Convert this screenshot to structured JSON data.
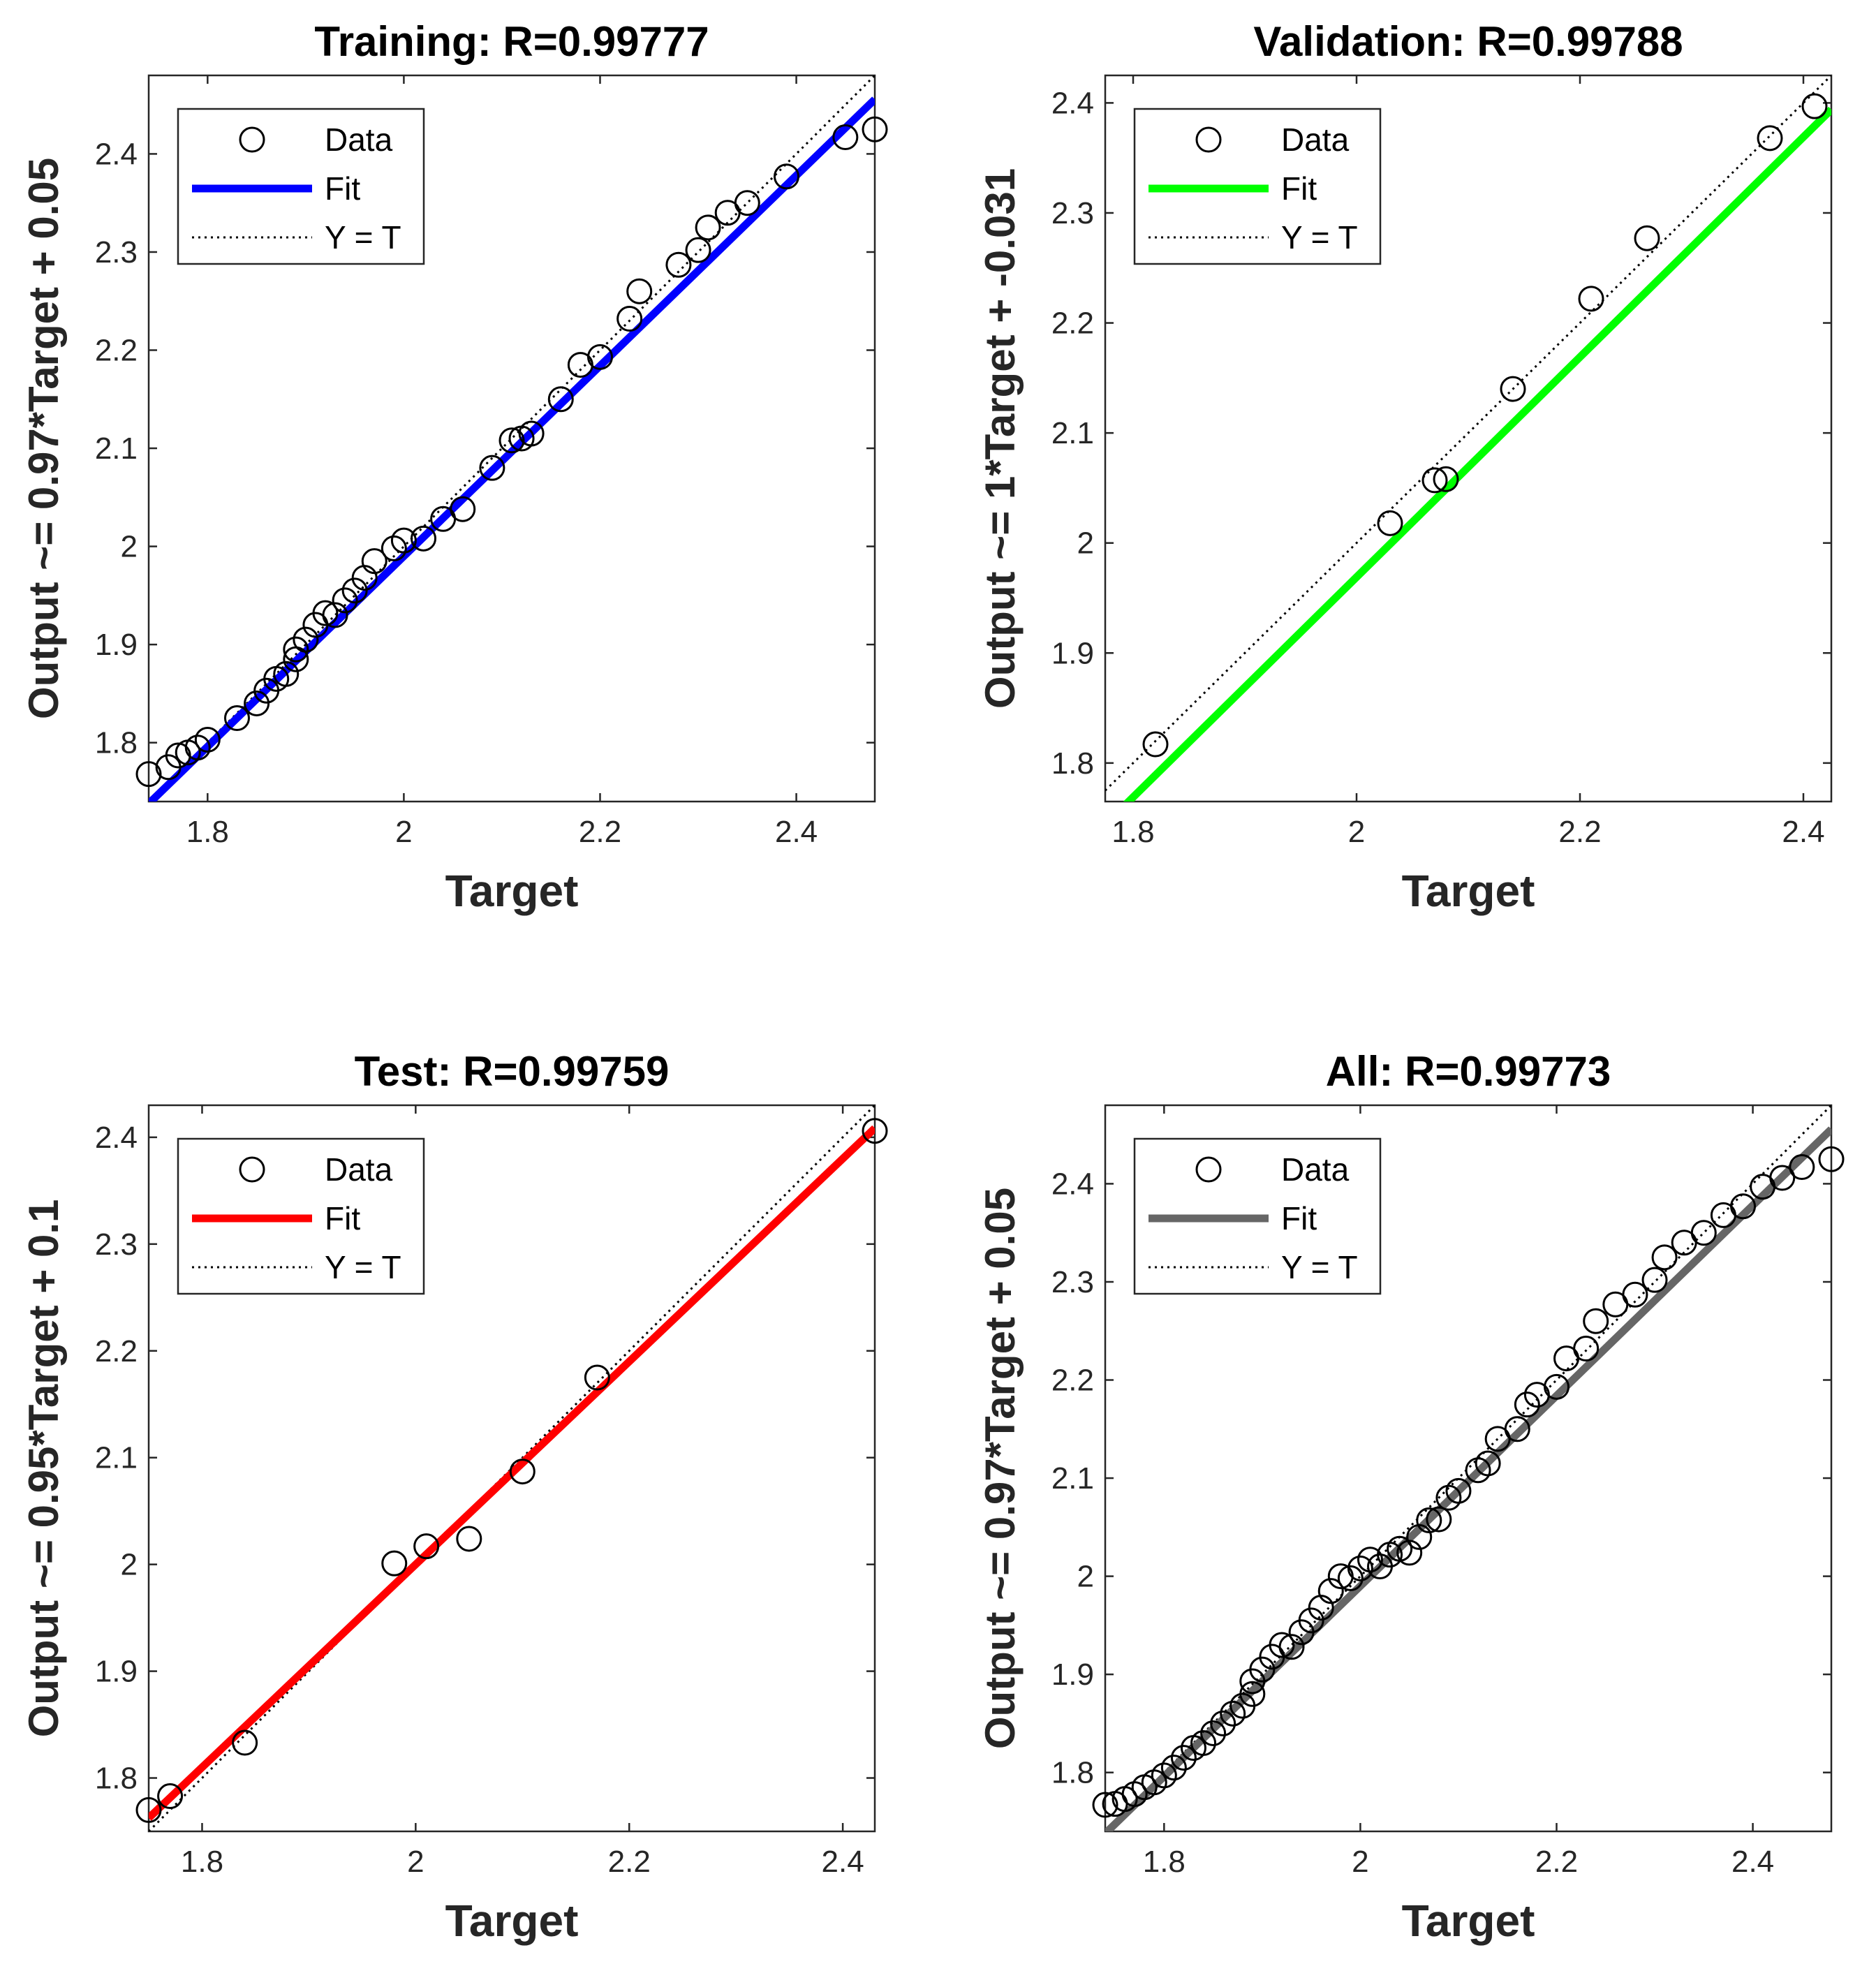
{
  "chart_data": [
    {
      "type": "scatter",
      "title": "Training: R=0.99777",
      "xlabel": "Target",
      "ylabel": "Output ~= 0.97*Target + 0.05",
      "xlim": [
        1.74,
        2.48
      ],
      "ylim": [
        1.74,
        2.48
      ],
      "xticks": [
        "1.8",
        "2",
        "2.2",
        "2.4"
      ],
      "yticks": [
        "1.8",
        "1.9",
        "2",
        "2.1",
        "2.2",
        "2.3",
        "2.4"
      ],
      "fit": {
        "slope": 0.97,
        "intercept": 0.05,
        "color": "#0000ff"
      },
      "legend": [
        "Data",
        "Fit",
        "Y = T"
      ],
      "points": [
        [
          1.74,
          1.768
        ],
        [
          1.76,
          1.775
        ],
        [
          1.77,
          1.787
        ],
        [
          1.78,
          1.79
        ],
        [
          1.79,
          1.795
        ],
        [
          1.8,
          1.803
        ],
        [
          1.83,
          1.825
        ],
        [
          1.85,
          1.84
        ],
        [
          1.86,
          1.853
        ],
        [
          1.87,
          1.865
        ],
        [
          1.88,
          1.87
        ],
        [
          1.89,
          1.885
        ],
        [
          1.89,
          1.895
        ],
        [
          1.9,
          1.905
        ],
        [
          1.91,
          1.92
        ],
        [
          1.92,
          1.932
        ],
        [
          1.93,
          1.93
        ],
        [
          1.94,
          1.945
        ],
        [
          1.95,
          1.955
        ],
        [
          1.96,
          1.968
        ],
        [
          1.97,
          1.985
        ],
        [
          1.99,
          1.998
        ],
        [
          2.0,
          2.006
        ],
        [
          2.02,
          2.008
        ],
        [
          2.04,
          2.028
        ],
        [
          2.06,
          2.038
        ],
        [
          2.09,
          2.08
        ],
        [
          2.11,
          2.108
        ],
        [
          2.12,
          2.11
        ],
        [
          2.13,
          2.115
        ],
        [
          2.16,
          2.15
        ],
        [
          2.18,
          2.185
        ],
        [
          2.2,
          2.193
        ],
        [
          2.23,
          2.232
        ],
        [
          2.24,
          2.26
        ],
        [
          2.28,
          2.287
        ],
        [
          2.3,
          2.302
        ],
        [
          2.31,
          2.325
        ],
        [
          2.33,
          2.34
        ],
        [
          2.35,
          2.35
        ],
        [
          2.39,
          2.377
        ],
        [
          2.45,
          2.417
        ],
        [
          2.48,
          2.425
        ]
      ]
    },
    {
      "type": "scatter",
      "title": "Validation: R=0.99788",
      "xlabel": "Target",
      "ylabel": "Output ~= 1*Target + -0.031",
      "xlim": [
        1.775,
        2.425
      ],
      "ylim": [
        1.765,
        2.425
      ],
      "xticks": [
        "1.8",
        "2",
        "2.2",
        "2.4"
      ],
      "yticks": [
        "1.8",
        "1.9",
        "2",
        "2.1",
        "2.2",
        "2.3",
        "2.4"
      ],
      "fit": {
        "slope": 1.0,
        "intercept": -0.031,
        "color": "#00ff00"
      },
      "legend": [
        "Data",
        "Fit",
        "Y = T"
      ],
      "points": [
        [
          1.82,
          1.817
        ],
        [
          2.03,
          2.018
        ],
        [
          2.07,
          2.057
        ],
        [
          2.08,
          2.058
        ],
        [
          2.14,
          2.14
        ],
        [
          2.21,
          2.222
        ],
        [
          2.26,
          2.277
        ],
        [
          2.37,
          2.368
        ],
        [
          2.41,
          2.397
        ]
      ]
    },
    {
      "type": "scatter",
      "title": "Test: R=0.99759",
      "xlabel": "Target",
      "ylabel": "Output ~= 0.95*Target + 0.1",
      "xlim": [
        1.75,
        2.43
      ],
      "ylim": [
        1.75,
        2.43
      ],
      "xticks": [
        "1.8",
        "2",
        "2.2",
        "2.4"
      ],
      "yticks": [
        "1.8",
        "1.9",
        "2",
        "2.1",
        "2.2",
        "2.3",
        "2.4"
      ],
      "fit": {
        "slope": 0.95,
        "intercept": 0.1,
        "color": "#ff0000"
      },
      "legend": [
        "Data",
        "Fit",
        "Y = T"
      ],
      "points": [
        [
          1.75,
          1.77
        ],
        [
          1.77,
          1.783
        ],
        [
          1.84,
          1.833
        ],
        [
          1.98,
          2.001
        ],
        [
          2.01,
          2.017
        ],
        [
          2.05,
          2.024
        ],
        [
          2.1,
          2.087
        ],
        [
          2.17,
          2.175
        ],
        [
          2.43,
          2.406
        ]
      ]
    },
    {
      "type": "scatter",
      "title": "All: R=0.99773",
      "xlabel": "Target",
      "ylabel": "Output ~= 0.97*Target + 0.05",
      "xlim": [
        1.74,
        2.48
      ],
      "ylim": [
        1.74,
        2.48
      ],
      "xticks": [
        "1.8",
        "2",
        "2.2",
        "2.4"
      ],
      "yticks": [
        "1.8",
        "1.9",
        "2",
        "2.1",
        "2.2",
        "2.3",
        "2.4"
      ],
      "fit": {
        "slope": 0.97,
        "intercept": 0.05,
        "color": "#666666"
      },
      "legend": [
        "Data",
        "Fit",
        "Y = T"
      ],
      "points": [
        [
          1.74,
          1.767
        ],
        [
          1.75,
          1.768
        ],
        [
          1.76,
          1.773
        ],
        [
          1.77,
          1.778
        ],
        [
          1.78,
          1.785
        ],
        [
          1.79,
          1.79
        ],
        [
          1.8,
          1.797
        ],
        [
          1.81,
          1.805
        ],
        [
          1.82,
          1.815
        ],
        [
          1.83,
          1.825
        ],
        [
          1.84,
          1.83
        ],
        [
          1.85,
          1.84
        ],
        [
          1.86,
          1.85
        ],
        [
          1.87,
          1.86
        ],
        [
          1.88,
          1.868
        ],
        [
          1.89,
          1.88
        ],
        [
          1.89,
          1.893
        ],
        [
          1.9,
          1.905
        ],
        [
          1.91,
          1.918
        ],
        [
          1.92,
          1.93
        ],
        [
          1.93,
          1.928
        ],
        [
          1.94,
          1.943
        ],
        [
          1.95,
          1.955
        ],
        [
          1.96,
          1.968
        ],
        [
          1.97,
          1.985
        ],
        [
          1.98,
          2.0
        ],
        [
          1.99,
          1.998
        ],
        [
          2.0,
          2.008
        ],
        [
          2.01,
          2.017
        ],
        [
          2.02,
          2.01
        ],
        [
          2.03,
          2.022
        ],
        [
          2.04,
          2.028
        ],
        [
          2.05,
          2.024
        ],
        [
          2.06,
          2.04
        ],
        [
          2.07,
          2.057
        ],
        [
          2.08,
          2.058
        ],
        [
          2.09,
          2.08
        ],
        [
          2.1,
          2.087
        ],
        [
          2.12,
          2.108
        ],
        [
          2.13,
          2.115
        ],
        [
          2.14,
          2.14
        ],
        [
          2.16,
          2.15
        ],
        [
          2.17,
          2.175
        ],
        [
          2.18,
          2.185
        ],
        [
          2.2,
          2.193
        ],
        [
          2.21,
          2.222
        ],
        [
          2.23,
          2.232
        ],
        [
          2.24,
          2.26
        ],
        [
          2.26,
          2.277
        ],
        [
          2.28,
          2.287
        ],
        [
          2.3,
          2.302
        ],
        [
          2.31,
          2.325
        ],
        [
          2.33,
          2.34
        ],
        [
          2.35,
          2.35
        ],
        [
          2.37,
          2.368
        ],
        [
          2.39,
          2.377
        ],
        [
          2.41,
          2.397
        ],
        [
          2.43,
          2.406
        ],
        [
          2.45,
          2.417
        ],
        [
          2.48,
          2.425
        ]
      ]
    }
  ]
}
